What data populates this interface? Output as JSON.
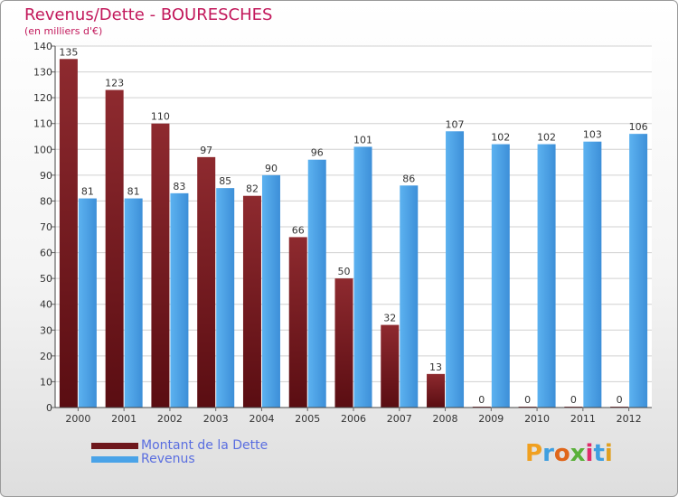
{
  "title": "Revenus/Dette - BOURESCHES",
  "subtitle": "(en milliers d'€)",
  "logo": "Proxiti",
  "colors": {
    "dette": "#7a1f24",
    "revenus": "#4aa3e8",
    "title": "#c2185b",
    "legend_text": "#5a6ee0"
  },
  "chart_data": {
    "type": "bar",
    "categories": [
      "2000",
      "2001",
      "2002",
      "2003",
      "2004",
      "2005",
      "2006",
      "2007",
      "2008",
      "2009",
      "2010",
      "2011",
      "2012"
    ],
    "series": [
      {
        "name": "Montant de la Dette",
        "values": [
          135,
          123,
          110,
          97,
          82,
          66,
          50,
          32,
          13,
          0,
          0,
          0,
          0
        ]
      },
      {
        "name": "Revenus",
        "values": [
          81,
          81,
          83,
          85,
          90,
          96,
          101,
          86,
          107,
          102,
          102,
          103,
          106
        ]
      }
    ],
    "yticks": [
      0,
      10,
      20,
      30,
      40,
      50,
      60,
      70,
      80,
      90,
      100,
      110,
      120,
      130,
      140
    ],
    "ylim": [
      0,
      140
    ],
    "grid": true,
    "legend_position": "bottom-left"
  }
}
